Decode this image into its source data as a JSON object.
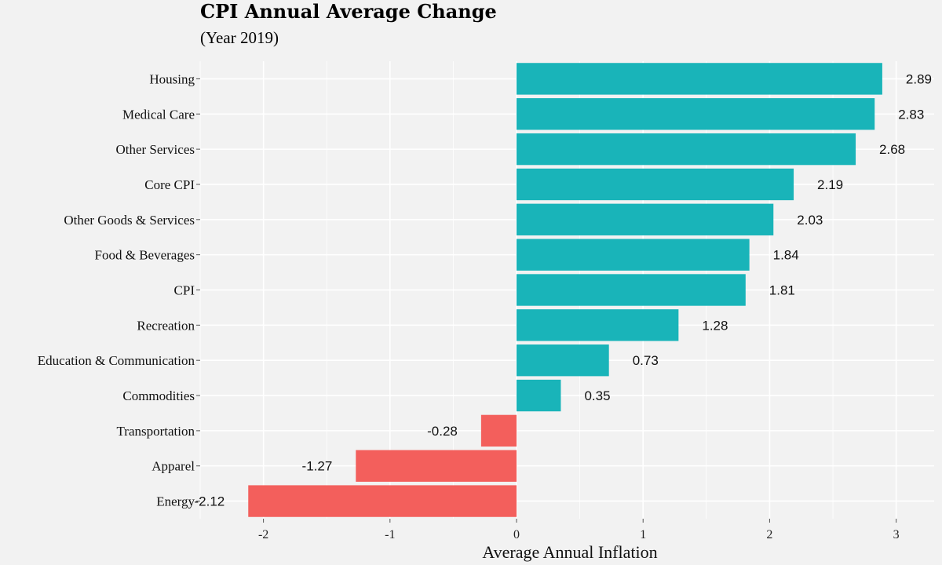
{
  "chart_data": {
    "type": "bar",
    "orientation": "horizontal",
    "title": "CPI Annual Average Change",
    "subtitle": "(Year 2019)",
    "xlabel": "Average Annual Inflation",
    "ylabel": "",
    "categories": [
      "Housing",
      "Medical Care",
      "Other Services",
      "Core CPI",
      "Other Goods & Services",
      "Food & Beverages",
      "CPI",
      "Recreation",
      "Education & Communication",
      "Commodities",
      "Transportation",
      "Apparel",
      "Energy"
    ],
    "values": [
      2.89,
      2.83,
      2.68,
      2.19,
      2.03,
      1.84,
      1.81,
      1.28,
      0.73,
      0.35,
      -0.28,
      -1.27,
      -2.12
    ],
    "value_labels": [
      "2.89",
      "2.83",
      "2.68",
      "2.19",
      "2.03",
      "1.84",
      "1.81",
      "1.28",
      "0.73",
      "0.35",
      "-0.28",
      "-1.27",
      "-2.12"
    ],
    "xlim": [
      -2.5,
      3.3
    ],
    "xticks": [
      -2,
      -1,
      0,
      1,
      2,
      3
    ],
    "xtick_labels": [
      "-2",
      "-1",
      "0",
      "1",
      "2",
      "3"
    ],
    "grid": true,
    "legend": "none",
    "colors": {
      "positive": "#19b4b9",
      "negative": "#f35f5c",
      "background": "#f2f2f2",
      "grid": "#ffffff"
    }
  }
}
